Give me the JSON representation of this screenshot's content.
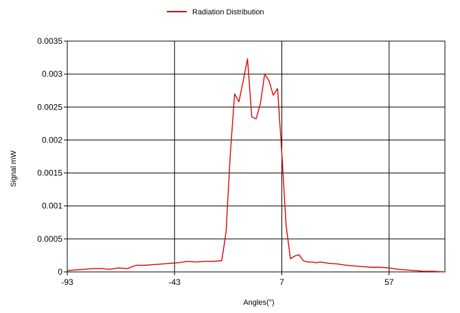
{
  "chart_data": {
    "type": "line",
    "title": "",
    "xlabel": "Angles(°)",
    "ylabel": "Signal mW",
    "xlim": [
      -93,
      83
    ],
    "ylim": [
      0,
      0.0035
    ],
    "xticks": [
      -93,
      -43,
      7,
      57
    ],
    "xtick_labels": [
      "-93",
      "-43",
      "7",
      "57"
    ],
    "yticks": [
      0,
      0.0005,
      0.001,
      0.0015,
      0.002,
      0.0025,
      0.003,
      0.0035
    ],
    "ytick_labels": [
      "0",
      "0.0005",
      "0.001",
      "0.0015",
      "0.002",
      "0.0025",
      "0.003",
      "0.0035"
    ],
    "grid": true,
    "legend_position": "top-center",
    "series": [
      {
        "name": "Radiation Distribution",
        "color": "#e00000",
        "x": [
          -93,
          -89,
          -85,
          -81,
          -77,
          -73,
          -69,
          -65,
          -61,
          -57,
          -53,
          -49,
          -45,
          -41,
          -37,
          -33,
          -29,
          -25,
          -21,
          -19,
          -17,
          -15,
          -13,
          -11,
          -9,
          -7,
          -5,
          -3,
          -1,
          1,
          3,
          5,
          7,
          9,
          11,
          13,
          15,
          17,
          19,
          21,
          23,
          25,
          27,
          29,
          33,
          37,
          41,
          45,
          49,
          53,
          57,
          61,
          65,
          69,
          73,
          77,
          83
        ],
        "y": [
          2e-05,
          3e-05,
          4e-05,
          5e-05,
          5e-05,
          4e-05,
          6e-05,
          5e-05,
          0.0001,
          0.0001,
          0.00011,
          0.00012,
          0.00013,
          0.00014,
          0.00016,
          0.00015,
          0.00016,
          0.00016,
          0.00017,
          0.0006,
          0.0018,
          0.0027,
          0.00258,
          0.0029,
          0.00323,
          0.00235,
          0.00232,
          0.00255,
          0.003,
          0.0029,
          0.00268,
          0.00278,
          0.0018,
          0.0007,
          0.0002,
          0.00024,
          0.00026,
          0.00017,
          0.00015,
          0.00015,
          0.00014,
          0.00015,
          0.00014,
          0.00013,
          0.00012,
          0.0001,
          9e-05,
          8e-05,
          7e-05,
          7e-05,
          6e-05,
          4e-05,
          3e-05,
          2e-05,
          1e-05,
          1e-05,
          0.0
        ]
      }
    ]
  }
}
